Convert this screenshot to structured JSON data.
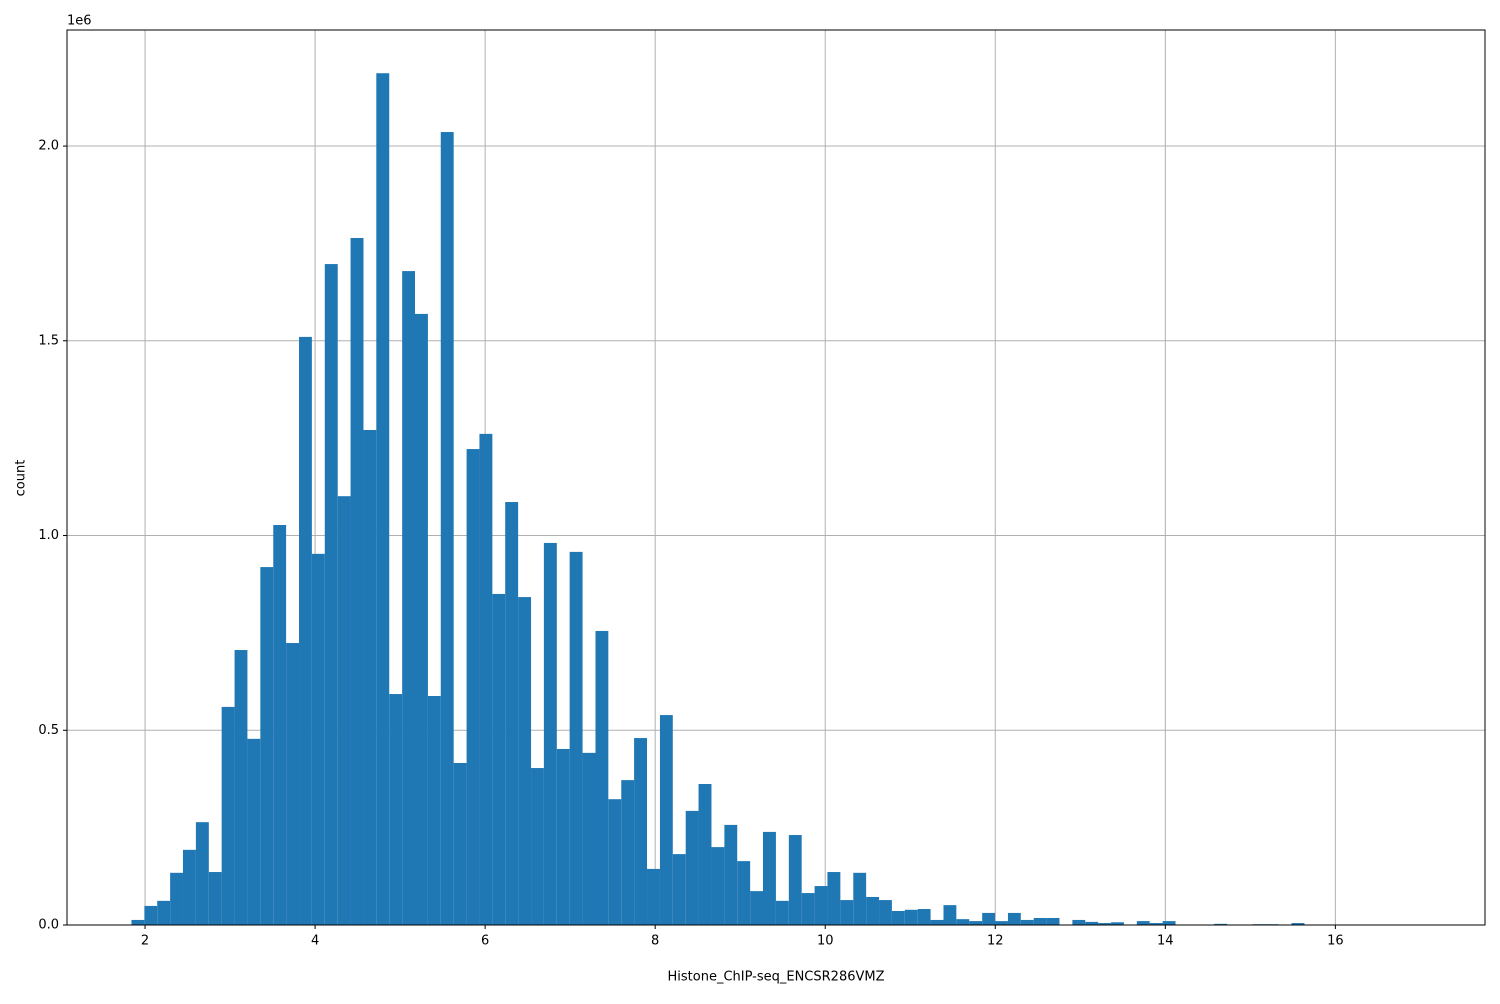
{
  "chart_data": {
    "type": "histogram",
    "xlabel": "Histone_ChIP-seq_ENCSR286VMZ",
    "ylabel": "count",
    "y_offset_label": "1e6",
    "color": "#1f77b4",
    "grid": true,
    "bins": [
      1.84,
      1.992,
      2.143,
      2.295,
      2.446,
      2.598,
      2.75,
      2.901,
      3.053,
      3.204,
      3.356,
      3.508,
      3.659,
      3.811,
      3.962,
      4.114,
      4.266,
      4.417,
      4.569,
      4.72,
      4.872,
      5.024,
      5.175,
      5.327,
      5.478,
      5.63,
      5.782,
      5.933,
      6.085,
      6.236,
      6.388,
      6.54,
      6.691,
      6.843,
      6.994,
      7.146,
      7.298,
      7.449,
      7.601,
      7.752,
      7.904,
      8.056,
      8.207,
      8.359,
      8.51,
      8.662,
      8.814,
      8.965,
      9.117,
      9.268,
      9.42,
      9.572,
      9.723,
      9.875,
      10.026,
      10.178,
      10.33,
      10.481,
      10.633,
      10.784,
      10.936,
      11.088,
      11.239,
      11.391,
      11.542,
      11.694,
      11.846,
      11.997,
      12.149,
      12.3,
      12.452,
      12.604,
      12.755,
      12.907,
      13.058,
      13.21,
      13.362,
      13.513,
      13.665,
      13.816,
      13.968,
      14.12,
      14.271,
      14.423,
      14.574,
      14.726,
      14.878,
      15.029,
      15.181,
      15.332,
      15.484,
      15.636,
      15.787,
      15.939,
      16.09,
      16.242,
      16.394,
      16.545,
      16.697,
      16.848,
      17.0
    ],
    "counts": [
      0.013,
      0.049,
      0.062,
      0.134,
      0.193,
      0.264,
      0.136,
      0.56,
      0.706,
      0.478,
      0.919,
      1.027,
      0.724,
      1.51,
      0.953,
      1.697,
      1.101,
      1.764,
      1.271,
      2.187,
      0.593,
      1.679,
      1.569,
      0.588,
      2.036,
      0.416,
      1.222,
      1.261,
      0.85,
      1.086,
      0.842,
      0.403,
      0.981,
      0.452,
      0.958,
      0.442,
      0.755,
      0.323,
      0.372,
      0.48,
      0.144,
      0.539,
      0.182,
      0.293,
      0.362,
      0.2,
      0.257,
      0.164,
      0.087,
      0.239,
      0.062,
      0.231,
      0.082,
      0.1,
      0.136,
      0.064,
      0.134,
      0.072,
      0.064,
      0.036,
      0.039,
      0.041,
      0.013,
      0.051,
      0.015,
      0.01,
      0.031,
      0.01,
      0.031,
      0.013,
      0.018,
      0.018,
      0.001,
      0.013,
      0.008,
      0.005,
      0.007,
      0.001,
      0.01,
      0.005,
      0.01,
      0,
      0,
      0,
      0.003,
      0,
      0,
      0.002,
      0.002,
      0,
      0.005,
      0,
      0,
      0,
      0,
      0,
      0,
      0,
      0,
      0
    ],
    "xlim": [
      1.082,
      17.76
    ],
    "ylim": [
      0,
      2.298
    ],
    "xticks": [
      2,
      4,
      6,
      8,
      10,
      12,
      14,
      16
    ],
    "yticks": [
      {
        "value": 0,
        "label": "0.0"
      },
      0.5,
      {
        "value": 1,
        "label": "1.0"
      },
      1.5,
      {
        "value": 2,
        "label": "2.0"
      }
    ]
  }
}
